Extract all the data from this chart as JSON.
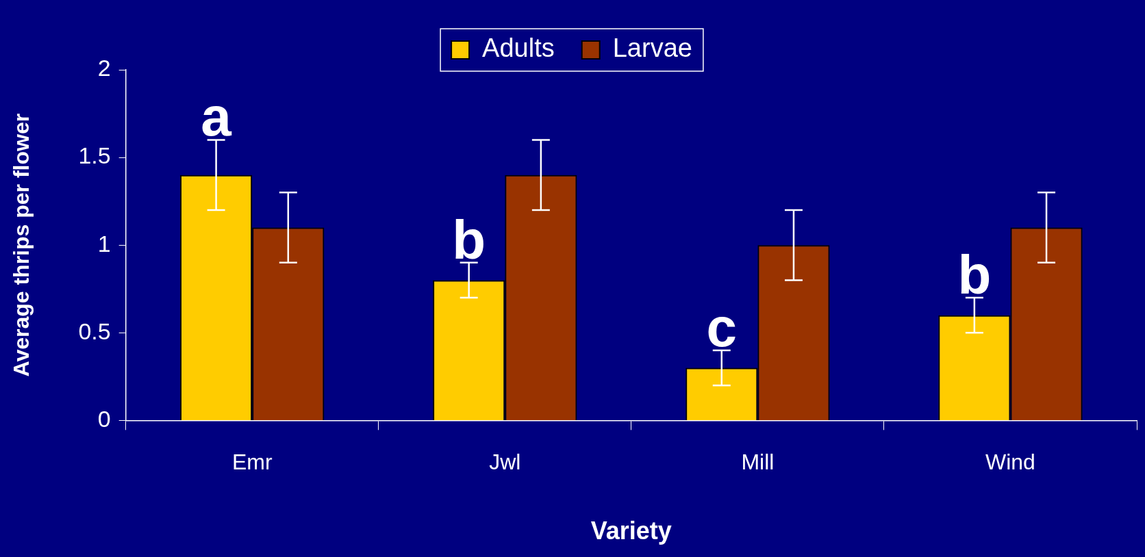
{
  "chart_data": {
    "type": "bar",
    "xlabel": "Variety",
    "ylabel": "Average thrips per flower",
    "categories": [
      "Emr",
      "Jwl",
      "Mill",
      "Wind"
    ],
    "series": [
      {
        "name": "Adults",
        "color": "#ffcc00",
        "values": [
          1.4,
          0.8,
          0.3,
          0.6
        ],
        "errors": [
          0.2,
          0.1,
          0.1,
          0.1
        ]
      },
      {
        "name": "Larvae",
        "color": "#993300",
        "values": [
          1.1,
          1.4,
          1.0,
          1.1
        ],
        "errors": [
          0.2,
          0.2,
          0.2,
          0.2
        ]
      }
    ],
    "ylim": [
      0,
      2
    ],
    "yticks": [
      0,
      0.5,
      1,
      1.5,
      2
    ],
    "grid": false,
    "legend": "top",
    "annotations": [
      "a",
      "b",
      "c",
      "b"
    ]
  }
}
